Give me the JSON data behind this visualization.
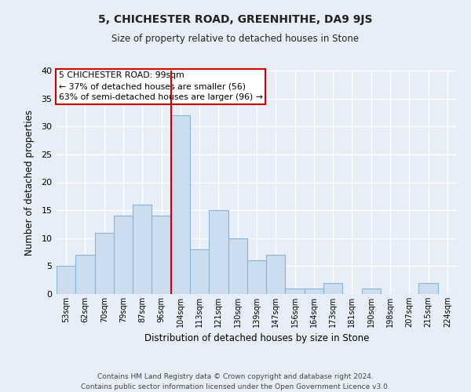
{
  "title1": "5, CHICHESTER ROAD, GREENHITHE, DA9 9JS",
  "title2": "Size of property relative to detached houses in Stone",
  "xlabel": "Distribution of detached houses by size in Stone",
  "ylabel": "Number of detached properties",
  "bar_labels": [
    "53sqm",
    "62sqm",
    "70sqm",
    "79sqm",
    "87sqm",
    "96sqm",
    "104sqm",
    "113sqm",
    "121sqm",
    "130sqm",
    "139sqm",
    "147sqm",
    "156sqm",
    "164sqm",
    "173sqm",
    "181sqm",
    "190sqm",
    "198sqm",
    "207sqm",
    "215sqm",
    "224sqm"
  ],
  "bar_values": [
    5,
    7,
    11,
    14,
    16,
    14,
    32,
    8,
    15,
    10,
    6,
    7,
    1,
    1,
    2,
    0,
    1,
    0,
    0,
    2,
    0
  ],
  "bar_color": "#ccddf0",
  "bar_edgecolor": "#8ab4d4",
  "bg_color": "#e8eef8",
  "fig_color": "#e8eef8",
  "grid_color": "#ffffff",
  "vline_x": 5.5,
  "vline_color": "#cc0000",
  "annotation_title": "5 CHICHESTER ROAD: 99sqm",
  "annotation_line1": "← 37% of detached houses are smaller (56)",
  "annotation_line2": "63% of semi-detached houses are larger (96) →",
  "annotation_box_facecolor": "#ffffff",
  "annotation_box_edgecolor": "#cc0000",
  "ylim": [
    0,
    40
  ],
  "yticks": [
    0,
    5,
    10,
    15,
    20,
    25,
    30,
    35,
    40
  ],
  "footer1": "Contains HM Land Registry data © Crown copyright and database right 2024.",
  "footer2": "Contains public sector information licensed under the Open Government Licence v3.0."
}
